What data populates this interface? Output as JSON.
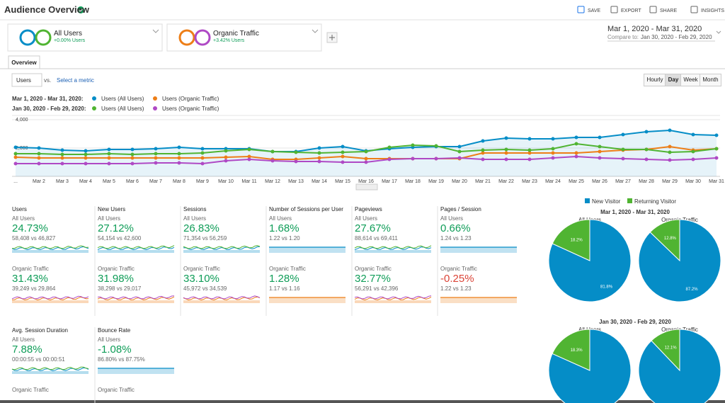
{
  "header": {
    "title": "Audience Overview",
    "actions": [
      "SAVE",
      "EXPORT",
      "SHARE",
      "INSIGHTS"
    ]
  },
  "segments": [
    {
      "name": "All Users",
      "change": "+0.00% Users"
    },
    {
      "name": "Organic Traffic",
      "change": "+3.42% Users"
    }
  ],
  "date_range": {
    "current": "Mar 1, 2020 - Mar 31, 2020",
    "compare_label": "Compare to:",
    "compare": "Jan 30, 2020 - Feb 29, 2020"
  },
  "tabs": [
    "Overview"
  ],
  "controls": {
    "metric": "Users",
    "vs": "vs.",
    "select": "Select a metric",
    "intervals": [
      "Hourly",
      "Day",
      "Week",
      "Month"
    ],
    "active_interval": 1
  },
  "line_chart": {
    "type": "line",
    "legend_rows": [
      {
        "period": "Mar 1, 2020 - Mar 31, 2020:",
        "series": [
          0,
          1
        ]
      },
      {
        "period": "Jan 30, 2020 - Feb 29, 2020:",
        "series": [
          2,
          3
        ]
      }
    ],
    "categories": [
      "...",
      "Mar 2",
      "Mar 3",
      "Mar 4",
      "Mar 5",
      "Mar 6",
      "Mar 7",
      "Mar 8",
      "Mar 9",
      "Mar 10",
      "Mar 11",
      "Mar 12",
      "Mar 13",
      "Mar 14",
      "Mar 15",
      "Mar 16",
      "Mar 17",
      "Mar 18",
      "Mar 19",
      "Mar 20",
      "Mar 21",
      "Mar 22",
      "Mar 23",
      "Mar 24",
      "Mar 25",
      "Mar 26",
      "Mar 27",
      "Mar 28",
      "Mar 29",
      "Mar 30",
      "Mar 31"
    ],
    "series": [
      {
        "name": "Users (All Users)",
        "color": "#058dc7",
        "area": true,
        "values": [
          2050,
          2000,
          1850,
          1800,
          1900,
          1900,
          1950,
          2050,
          1950,
          1950,
          1950,
          1750,
          1750,
          2000,
          2100,
          1800,
          1950,
          2050,
          2100,
          2100,
          2500,
          2700,
          2650,
          2650,
          2750,
          2750,
          2950,
          3150,
          3250,
          2950,
          2900
        ]
      },
      {
        "name": "Users (Organic Traffic)",
        "color": "#ed7e17",
        "values": [
          1350,
          1300,
          1300,
          1300,
          1300,
          1300,
          1300,
          1300,
          1300,
          1350,
          1400,
          1200,
          1200,
          1300,
          1400,
          1250,
          1250,
          1250,
          1250,
          1250,
          1650,
          1650,
          1650,
          1650,
          1650,
          1750,
          1850,
          1900,
          2100,
          1850,
          1950
        ]
      },
      {
        "name": "Users (All Users)",
        "color": "#50b432",
        "values": [
          1600,
          1600,
          1550,
          1550,
          1600,
          1550,
          1600,
          1600,
          1650,
          1800,
          1900,
          1750,
          1700,
          1650,
          1700,
          1750,
          2050,
          2200,
          2150,
          1750,
          1850,
          1900,
          1850,
          1950,
          2300,
          2100,
          1900,
          1900,
          1700,
          1750,
          1950
        ]
      },
      {
        "name": "Users (Organic Traffic)",
        "color": "#af49c5",
        "values": [
          900,
          900,
          900,
          900,
          900,
          900,
          950,
          950,
          900,
          1100,
          1200,
          1100,
          1050,
          1050,
          1000,
          1000,
          1200,
          1250,
          1250,
          1300,
          1200,
          1200,
          1200,
          1300,
          1400,
          1300,
          1250,
          1200,
          1150,
          1200,
          1300
        ]
      }
    ],
    "ylim": [
      0,
      4000
    ],
    "yticks": [
      {
        "value": 4000,
        "label": "4,000"
      },
      {
        "value": 2000,
        "label": "2,000"
      }
    ],
    "grid": true
  },
  "metrics": [
    {
      "title": "Users",
      "rows": [
        {
          "segment": "All Users",
          "change": "24.73%",
          "compare": "58,408 vs 46,827",
          "color": "#0f9d58"
        },
        {
          "segment": "Organic Traffic",
          "change": "31.43%",
          "compare": "39,249 vs 29,864",
          "color": "#0f9d58"
        }
      ]
    },
    {
      "title": "New Users",
      "rows": [
        {
          "segment": "All Users",
          "change": "27.12%",
          "compare": "54,154 vs 42,600",
          "color": "#0f9d58"
        },
        {
          "segment": "Organic Traffic",
          "change": "31.98%",
          "compare": "38,298 vs 29,017",
          "color": "#0f9d58"
        }
      ]
    },
    {
      "title": "Sessions",
      "rows": [
        {
          "segment": "All Users",
          "change": "26.83%",
          "compare": "71,354 vs 56,259",
          "color": "#0f9d58"
        },
        {
          "segment": "Organic Traffic",
          "change": "33.10%",
          "compare": "45,972 vs 34,539",
          "color": "#0f9d58"
        }
      ]
    },
    {
      "title": "Number of Sessions per User",
      "flat": true,
      "rows": [
        {
          "segment": "All Users",
          "change": "1.68%",
          "compare": "1.22 vs 1.20",
          "color": "#0f9d58"
        },
        {
          "segment": "Organic Traffic",
          "change": "1.28%",
          "compare": "1.17 vs 1.16",
          "color": "#0f9d58"
        }
      ]
    },
    {
      "title": "Pageviews",
      "rows": [
        {
          "segment": "All Users",
          "change": "27.67%",
          "compare": "88,614 vs 69,411",
          "color": "#0f9d58"
        },
        {
          "segment": "Organic Traffic",
          "change": "32.77%",
          "compare": "56,291 vs 42,396",
          "color": "#0f9d58"
        }
      ]
    },
    {
      "title": "Pages / Session",
      "flat": true,
      "rows": [
        {
          "segment": "All Users",
          "change": "0.66%",
          "compare": "1.24 vs 1.23",
          "color": "#0f9d58"
        },
        {
          "segment": "Organic Traffic",
          "change": "-0.25%",
          "compare": "1.22 vs 1.23",
          "color": "#db4437"
        }
      ]
    },
    {
      "title": "Avg. Session Duration",
      "rows": [
        {
          "segment": "All Users",
          "change": "7.88%",
          "compare": "00:00:55 vs 00:00:51",
          "color": "#0f9d58"
        },
        {
          "segment": "Organic Traffic"
        }
      ]
    },
    {
      "title": "Bounce Rate",
      "flat": true,
      "rows": [
        {
          "segment": "All Users",
          "change": "-1.08%",
          "compare": "86.80% vs 87.75%",
          "color": "#0f9d58"
        },
        {
          "segment": "Organic Traffic"
        }
      ]
    }
  ],
  "pies": {
    "type": "pie",
    "legend": [
      {
        "name": "New Visitor",
        "color": "#058dc7"
      },
      {
        "name": "Returning Visitor",
        "color": "#50b432"
      }
    ],
    "groups": [
      {
        "title": "Mar 1, 2020 - Mar 31, 2020",
        "charts": [
          {
            "title": "All Users",
            "values": [
              81.8,
              18.2
            ],
            "value_labels": [
              "81.8%",
              "18.2%"
            ]
          },
          {
            "title": "Organic Traffic",
            "values": [
              87.2,
              12.8
            ],
            "value_labels": [
              "87.2%",
              "12.8%"
            ]
          }
        ]
      },
      {
        "title": "Jan 30, 2020 - Feb 29, 2020",
        "charts": [
          {
            "title": "All Users",
            "values": [
              81.7,
              18.3
            ],
            "value_labels": [
              null,
              "18.3%"
            ]
          },
          {
            "title": "Organic Traffic",
            "values": [
              87.9,
              12.1
            ],
            "value_labels": [
              null,
              "12.1%"
            ]
          }
        ]
      }
    ]
  }
}
